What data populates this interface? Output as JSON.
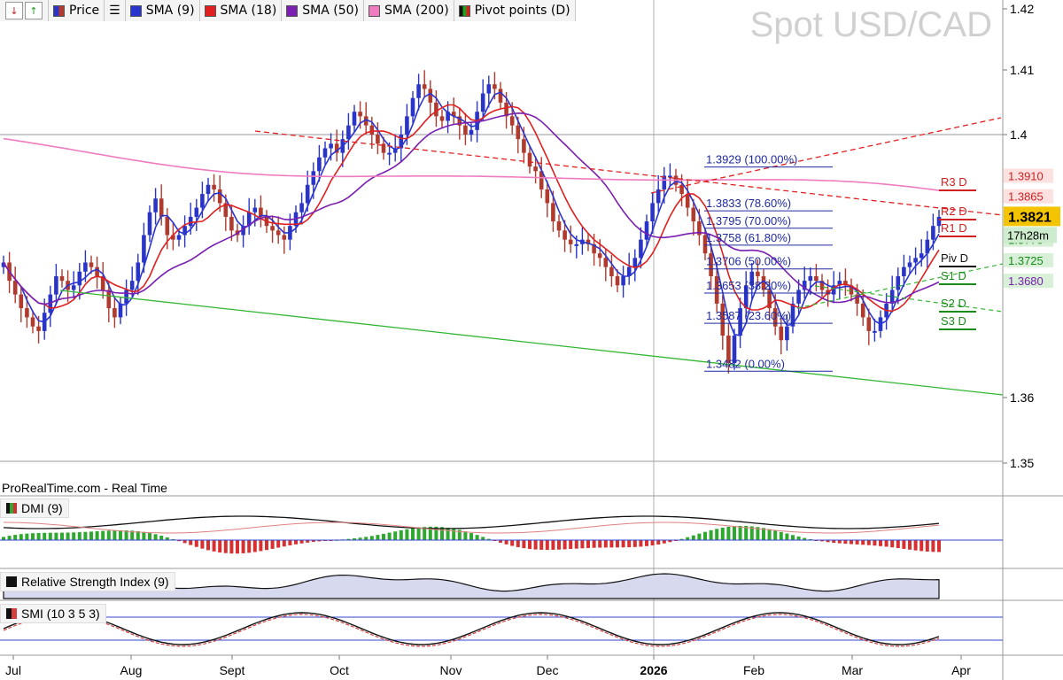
{
  "toolbar": {
    "price_label": "Price",
    "sma9_label": "SMA (9)",
    "sma18_label": "SMA (18)",
    "sma50_label": "SMA (50)",
    "sma200_label": "SMA (200)",
    "pivot_label": "Pivot points (D)"
  },
  "title": "Spot USD/CAD",
  "source_label": "ProRealTime.com - Real Time",
  "indicators": {
    "dmi_label": "DMI (9)",
    "rsi_label": "Relative Strength Index (9)",
    "smi_label": "SMI (10 3 5 3)"
  },
  "colors": {
    "sma9": "#2a35d0",
    "sma18": "#e02020",
    "sma50": "#7a1fb0",
    "sma200": "#f07cc0",
    "bull": "#2a35c8",
    "bear": "#b03a2e",
    "trend_green": "#33b633",
    "trend_red": "#e02020",
    "fib": "#1f2aa0",
    "price_badge": "#f5c400"
  },
  "chart_data": {
    "type": "candlestick",
    "title": "Spot USD/CAD",
    "x_ticks": [
      "Jul",
      "Aug",
      "Sept",
      "Oct",
      "Nov",
      "Dec",
      "2026",
      "Feb",
      "Mar",
      "Apr"
    ],
    "y_ticks": [
      "1.42",
      "1.41",
      "1.4",
      "1.36",
      "1.35"
    ],
    "ylim": [
      1.35,
      1.42
    ],
    "last_price": "1.3821",
    "countdown": "17h28m",
    "pivots": [
      {
        "name": "R3 D",
        "value": "1.3910"
      },
      {
        "name": "R2 D",
        "value": "1.3865"
      },
      {
        "name": "R1 D",
        "value": ""
      },
      {
        "name": "Piv D",
        "value": ""
      },
      {
        "name": "S1 D",
        "value": "1.3770"
      },
      {
        "name": "S2 D",
        "value": "1.3725"
      },
      {
        "name": "S3 D",
        "value": "1.3680"
      }
    ],
    "fibonacci": [
      {
        "label": "1.3929 (100.00%)",
        "value": 1.3929
      },
      {
        "label": "1.3833 (78.60%)",
        "value": 1.3833
      },
      {
        "label": "1.3795 (70.00%)",
        "value": 1.3795
      },
      {
        "label": "1.3758 (61.80%)",
        "value": 1.3758
      },
      {
        "label": "1.3706 (50.00%)",
        "value": 1.3706
      },
      {
        "label": "1.3653 (38.20%)",
        "value": 1.3653
      },
      {
        "label": "1.3587 (23.60%)",
        "value": 1.3587
      },
      {
        "label": "1.3482 (0.00%)",
        "value": 1.3482
      }
    ],
    "ohlc_close": [
      1.372,
      1.368,
      1.365,
      1.362,
      1.36,
      1.358,
      1.357,
      1.361,
      1.365,
      1.369,
      1.368,
      1.366,
      1.367,
      1.37,
      1.372,
      1.371,
      1.369,
      1.366,
      1.362,
      1.36,
      1.363,
      1.366,
      1.368,
      1.372,
      1.378,
      1.383,
      1.386,
      1.382,
      1.378,
      1.377,
      1.378,
      1.38,
      1.382,
      1.384,
      1.387,
      1.389,
      1.388,
      1.385,
      1.382,
      1.379,
      1.378,
      1.38,
      1.383,
      1.384,
      1.382,
      1.38,
      1.379,
      1.378,
      1.377,
      1.38,
      1.383,
      1.385,
      1.389,
      1.392,
      1.395,
      1.397,
      1.398,
      1.396,
      1.399,
      1.402,
      1.405,
      1.404,
      1.402,
      1.4,
      1.398,
      1.396,
      1.396,
      1.397,
      1.4,
      1.404,
      1.408,
      1.411,
      1.41,
      1.407,
      1.404,
      1.403,
      1.405,
      1.404,
      1.402,
      1.4,
      1.401,
      1.405,
      1.409,
      1.411,
      1.41,
      1.407,
      1.404,
      1.402,
      1.399,
      1.396,
      1.393,
      1.392,
      1.388,
      1.385,
      1.381,
      1.379,
      1.377,
      1.376,
      1.376,
      1.377,
      1.376,
      1.374,
      1.373,
      1.371,
      1.369,
      1.367,
      1.369,
      1.371,
      1.373,
      1.377,
      1.381,
      1.385,
      1.388,
      1.391,
      1.391,
      1.389,
      1.387,
      1.384,
      1.381,
      1.378,
      1.374,
      1.369,
      1.363,
      1.356,
      1.35,
      1.356,
      1.362,
      1.367,
      1.37,
      1.369,
      1.366,
      1.362,
      1.358,
      1.355,
      1.358,
      1.363,
      1.366,
      1.368,
      1.369,
      1.368,
      1.366,
      1.365,
      1.367,
      1.368,
      1.367,
      1.365,
      1.363,
      1.36,
      1.357,
      1.357,
      1.36,
      1.363,
      1.366,
      1.369,
      1.371,
      1.372,
      1.373,
      1.374,
      1.377,
      1.38,
      1.382
    ]
  }
}
